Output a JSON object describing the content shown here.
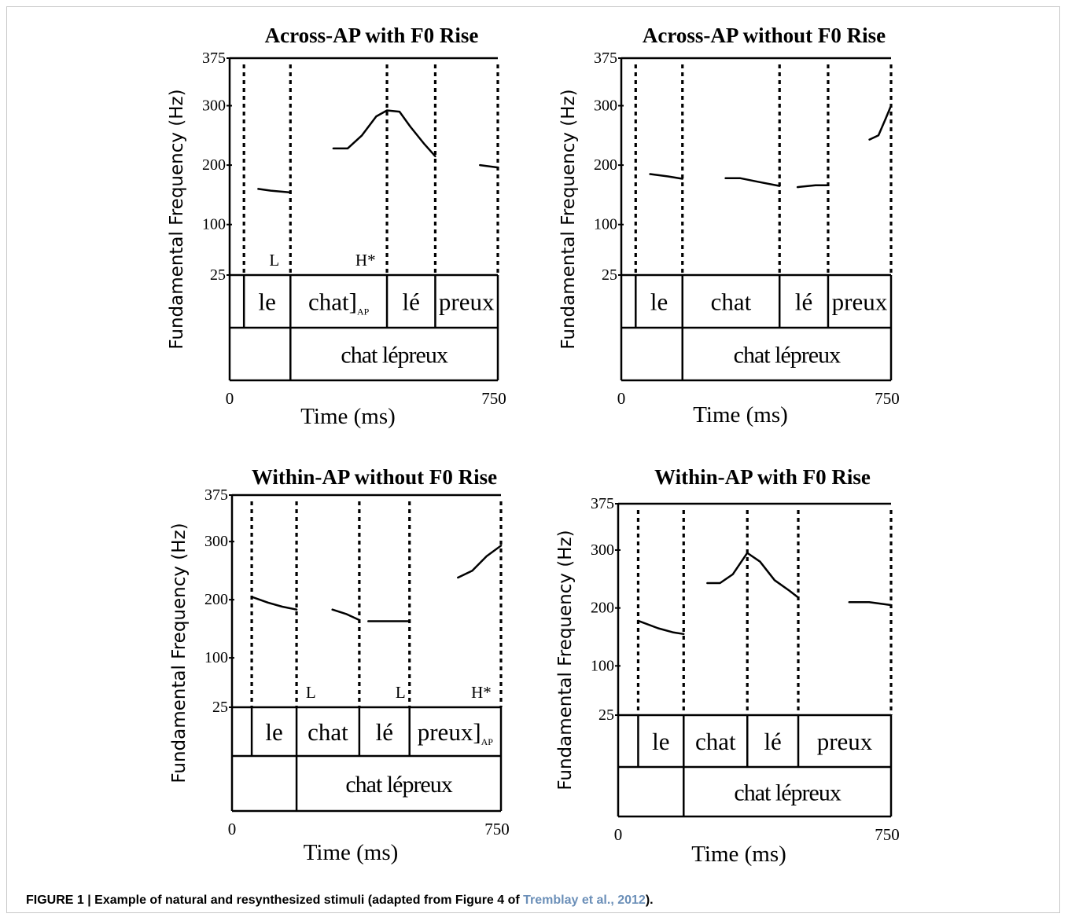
{
  "caption": {
    "prefix": "FIGURE 1 | Example of natural and resynthesized stimuli (adapted from Figure 4 of ",
    "citation": "Tremblay et al., 2012",
    "suffix": ")."
  },
  "chart_data": [
    {
      "type": "line",
      "title": "Across-AP with F0 Rise",
      "ylabel": "Fundamental Frequency (Hz)",
      "xlabel": "Time (ms)",
      "xlim": [
        0,
        750
      ],
      "x_tick_labels": [
        "0",
        "750"
      ],
      "y_ticks": [
        375,
        300,
        200,
        100,
        25
      ],
      "boundaries_ms": [
        40,
        170,
        440,
        575,
        750
      ],
      "tone_labels": [
        {
          "text": "L",
          "x": 125
        },
        {
          "text": "H*",
          "x": 380
        }
      ],
      "syllables": [
        {
          "text": "le",
          "x": [
            40,
            170
          ]
        },
        {
          "text": "chat",
          "x": [
            170,
            440
          ],
          "subscript": "AP",
          "bracket": true
        },
        {
          "text": "lé",
          "x": [
            440,
            575
          ]
        },
        {
          "text": "preux",
          "x": [
            575,
            750
          ]
        }
      ],
      "word_tier": [
        {
          "text": "",
          "x": [
            0,
            170
          ]
        },
        {
          "text": "chat lépreux",
          "x": [
            170,
            750
          ]
        }
      ],
      "series": [
        {
          "points": [
            [
              80,
              160
            ],
            [
              115,
              157
            ],
            [
              170,
              154
            ]
          ]
        },
        {
          "points": [
            [
              290,
              228
            ],
            [
              330,
              228
            ],
            [
              370,
              250
            ],
            [
              410,
              282
            ],
            [
              440,
              292
            ],
            [
              475,
              290
            ],
            [
              505,
              265
            ],
            [
              545,
              235
            ],
            [
              575,
              215
            ]
          ]
        },
        {
          "points": [
            [
              700,
              200
            ],
            [
              725,
              198
            ],
            [
              750,
              196
            ]
          ]
        }
      ]
    },
    {
      "type": "line",
      "title": "Across-AP without F0 Rise",
      "ylabel": "Fundamental Frequency (Hz)",
      "xlabel": "Time (ms)",
      "xlim": [
        0,
        750
      ],
      "x_tick_labels": [
        "0",
        "750"
      ],
      "y_ticks": [
        375,
        300,
        200,
        100,
        25
      ],
      "boundaries_ms": [
        40,
        170,
        440,
        575,
        750
      ],
      "tone_labels": [],
      "syllables": [
        {
          "text": "le",
          "x": [
            40,
            170
          ]
        },
        {
          "text": "chat",
          "x": [
            170,
            440
          ]
        },
        {
          "text": "lé",
          "x": [
            440,
            575
          ]
        },
        {
          "text": "preux",
          "x": [
            575,
            750
          ]
        }
      ],
      "word_tier": [
        {
          "text": "",
          "x": [
            0,
            170
          ]
        },
        {
          "text": "chat lépreux",
          "x": [
            170,
            750
          ]
        }
      ],
      "series": [
        {
          "points": [
            [
              80,
              185
            ],
            [
              130,
              181
            ],
            [
              170,
              177
            ]
          ]
        },
        {
          "points": [
            [
              290,
              178
            ],
            [
              330,
              178
            ],
            [
              380,
              172
            ],
            [
              440,
              165
            ]
          ]
        },
        {
          "points": [
            [
              490,
              163
            ],
            [
              540,
              166
            ],
            [
              575,
              166
            ]
          ]
        },
        {
          "points": [
            [
              690,
              243
            ],
            [
              715,
              250
            ],
            [
              735,
              278
            ],
            [
              750,
              300
            ]
          ]
        }
      ]
    },
    {
      "type": "line",
      "title": "Within-AP without F0 Rise",
      "ylabel": "Fundamental Frequency (Hz)",
      "xlabel": "Time (ms)",
      "xlim": [
        0,
        750
      ],
      "x_tick_labels": [
        "0",
        "750"
      ],
      "y_ticks": [
        375,
        300,
        200,
        100,
        25
      ],
      "boundaries_ms": [
        55,
        180,
        355,
        495,
        750
      ],
      "tone_labels": [
        {
          "text": "L",
          "x": 220
        },
        {
          "text": "L",
          "x": 470
        },
        {
          "text": "H*",
          "x": 695
        }
      ],
      "syllables": [
        {
          "text": "le",
          "x": [
            55,
            180
          ]
        },
        {
          "text": "chat",
          "x": [
            180,
            355
          ]
        },
        {
          "text": "lé",
          "x": [
            355,
            495
          ]
        },
        {
          "text": "preux",
          "x": [
            495,
            750
          ],
          "subscript": "AP",
          "bracket": true
        }
      ],
      "word_tier": [
        {
          "text": "",
          "x": [
            0,
            180
          ]
        },
        {
          "text": "chat lépreux",
          "x": [
            180,
            750
          ]
        }
      ],
      "series": [
        {
          "points": [
            [
              55,
              205
            ],
            [
              100,
              195
            ],
            [
              140,
              188
            ],
            [
              180,
              183
            ]
          ]
        },
        {
          "points": [
            [
              280,
              183
            ],
            [
              320,
              175
            ],
            [
              355,
              165
            ]
          ]
        },
        {
          "points": [
            [
              380,
              163
            ],
            [
              440,
              163
            ],
            [
              495,
              163
            ]
          ]
        },
        {
          "points": [
            [
              630,
              238
            ],
            [
              670,
              250
            ],
            [
              710,
              275
            ],
            [
              750,
              293
            ]
          ]
        }
      ]
    },
    {
      "type": "line",
      "title": "Within-AP with F0 Rise",
      "ylabel": "Fundamental Frequency (Hz)",
      "xlabel": "Time (ms)",
      "xlim": [
        0,
        750
      ],
      "x_tick_labels": [
        "0",
        "750"
      ],
      "y_ticks": [
        375,
        300,
        200,
        100,
        25
      ],
      "boundaries_ms": [
        55,
        180,
        355,
        495,
        750
      ],
      "tone_labels": [],
      "syllables": [
        {
          "text": "le",
          "x": [
            55,
            180
          ]
        },
        {
          "text": "chat",
          "x": [
            180,
            355
          ]
        },
        {
          "text": "lé",
          "x": [
            355,
            495
          ]
        },
        {
          "text": "preux",
          "x": [
            495,
            750
          ]
        }
      ],
      "word_tier": [
        {
          "text": "",
          "x": [
            0,
            180
          ]
        },
        {
          "text": "chat lépreux",
          "x": [
            180,
            750
          ]
        }
      ],
      "series": [
        {
          "points": [
            [
              55,
              178
            ],
            [
              110,
              165
            ],
            [
              150,
              158
            ],
            [
              180,
              155
            ]
          ]
        },
        {
          "points": [
            [
              245,
              243
            ],
            [
              280,
              243
            ],
            [
              315,
              258
            ],
            [
              355,
              295
            ],
            [
              390,
              280
            ],
            [
              430,
              248
            ],
            [
              470,
              230
            ],
            [
              495,
              218
            ]
          ]
        },
        {
          "points": [
            [
              635,
              210
            ],
            [
              690,
              210
            ],
            [
              750,
              205
            ]
          ]
        }
      ]
    }
  ]
}
